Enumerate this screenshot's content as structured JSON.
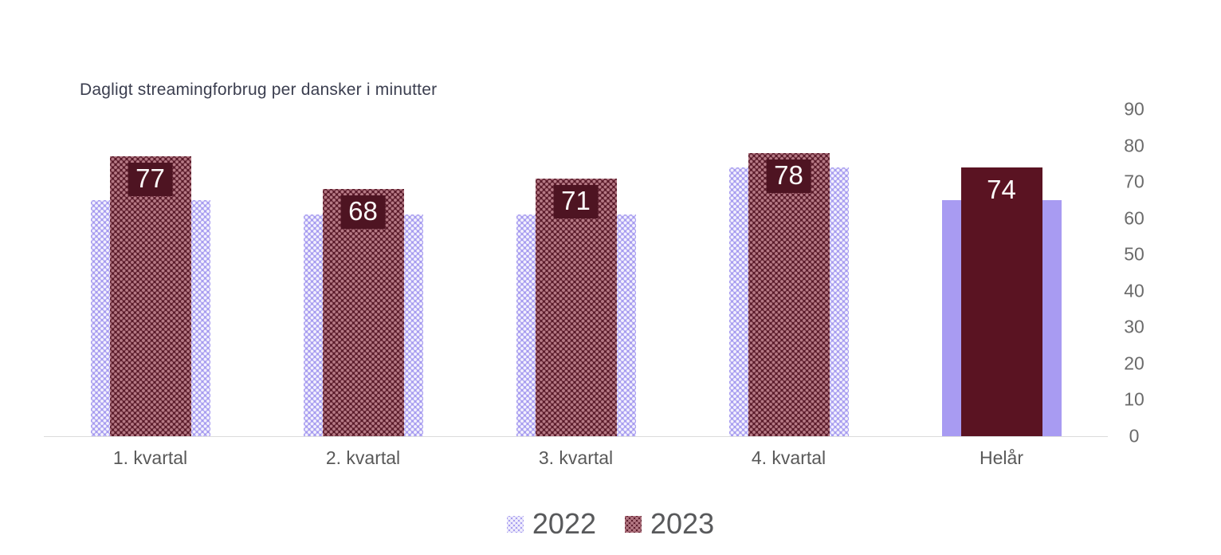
{
  "title": "Dagligt streamingforbrug per dansker i minutter",
  "chart_data": {
    "type": "bar",
    "title": "Dagligt streamingforbrug per dansker i minutter",
    "categories": [
      "1. kvartal",
      "2. kvartal",
      "3. kvartal",
      "4. kvartal",
      "Helår"
    ],
    "series": [
      {
        "name": "2022",
        "values": [
          65,
          61,
          61,
          74,
          65
        ],
        "color": "#a79cf0",
        "fill_style": "dotted-pattern",
        "data_labels_shown": false
      },
      {
        "name": "2023",
        "values": [
          77,
          68,
          71,
          78,
          74
        ],
        "color": "#5a1b2a",
        "fill_style": "dotted-pattern",
        "data_labels_shown": true
      }
    ],
    "data_labels": {
      "series": "2023",
      "values": [
        77,
        68,
        71,
        78,
        74
      ],
      "text_color": "#ffffff",
      "background_color": "#4e1422"
    },
    "solid_fill_categories": [
      "Helår"
    ],
    "y_axis": {
      "side": "right",
      "min": 0,
      "max": 90,
      "ticks": [
        90,
        80,
        70,
        60,
        50,
        40,
        30,
        20,
        10,
        0
      ]
    },
    "x_axis_line_color": "#dcdcdc",
    "grid": false,
    "legend": {
      "position": "bottom",
      "entries": [
        "2022",
        "2023"
      ]
    },
    "colors": {
      "series_2022_base": "#a79cf0",
      "series_2022_solid": "#a89bf2",
      "series_2023_base": "#5a1b2a",
      "series_2023_solid": "#5a1322",
      "title_text": "#3b3e4f",
      "axis_text": "#6b6b6b",
      "category_text": "#595959",
      "legend_text": "#58595b"
    }
  }
}
